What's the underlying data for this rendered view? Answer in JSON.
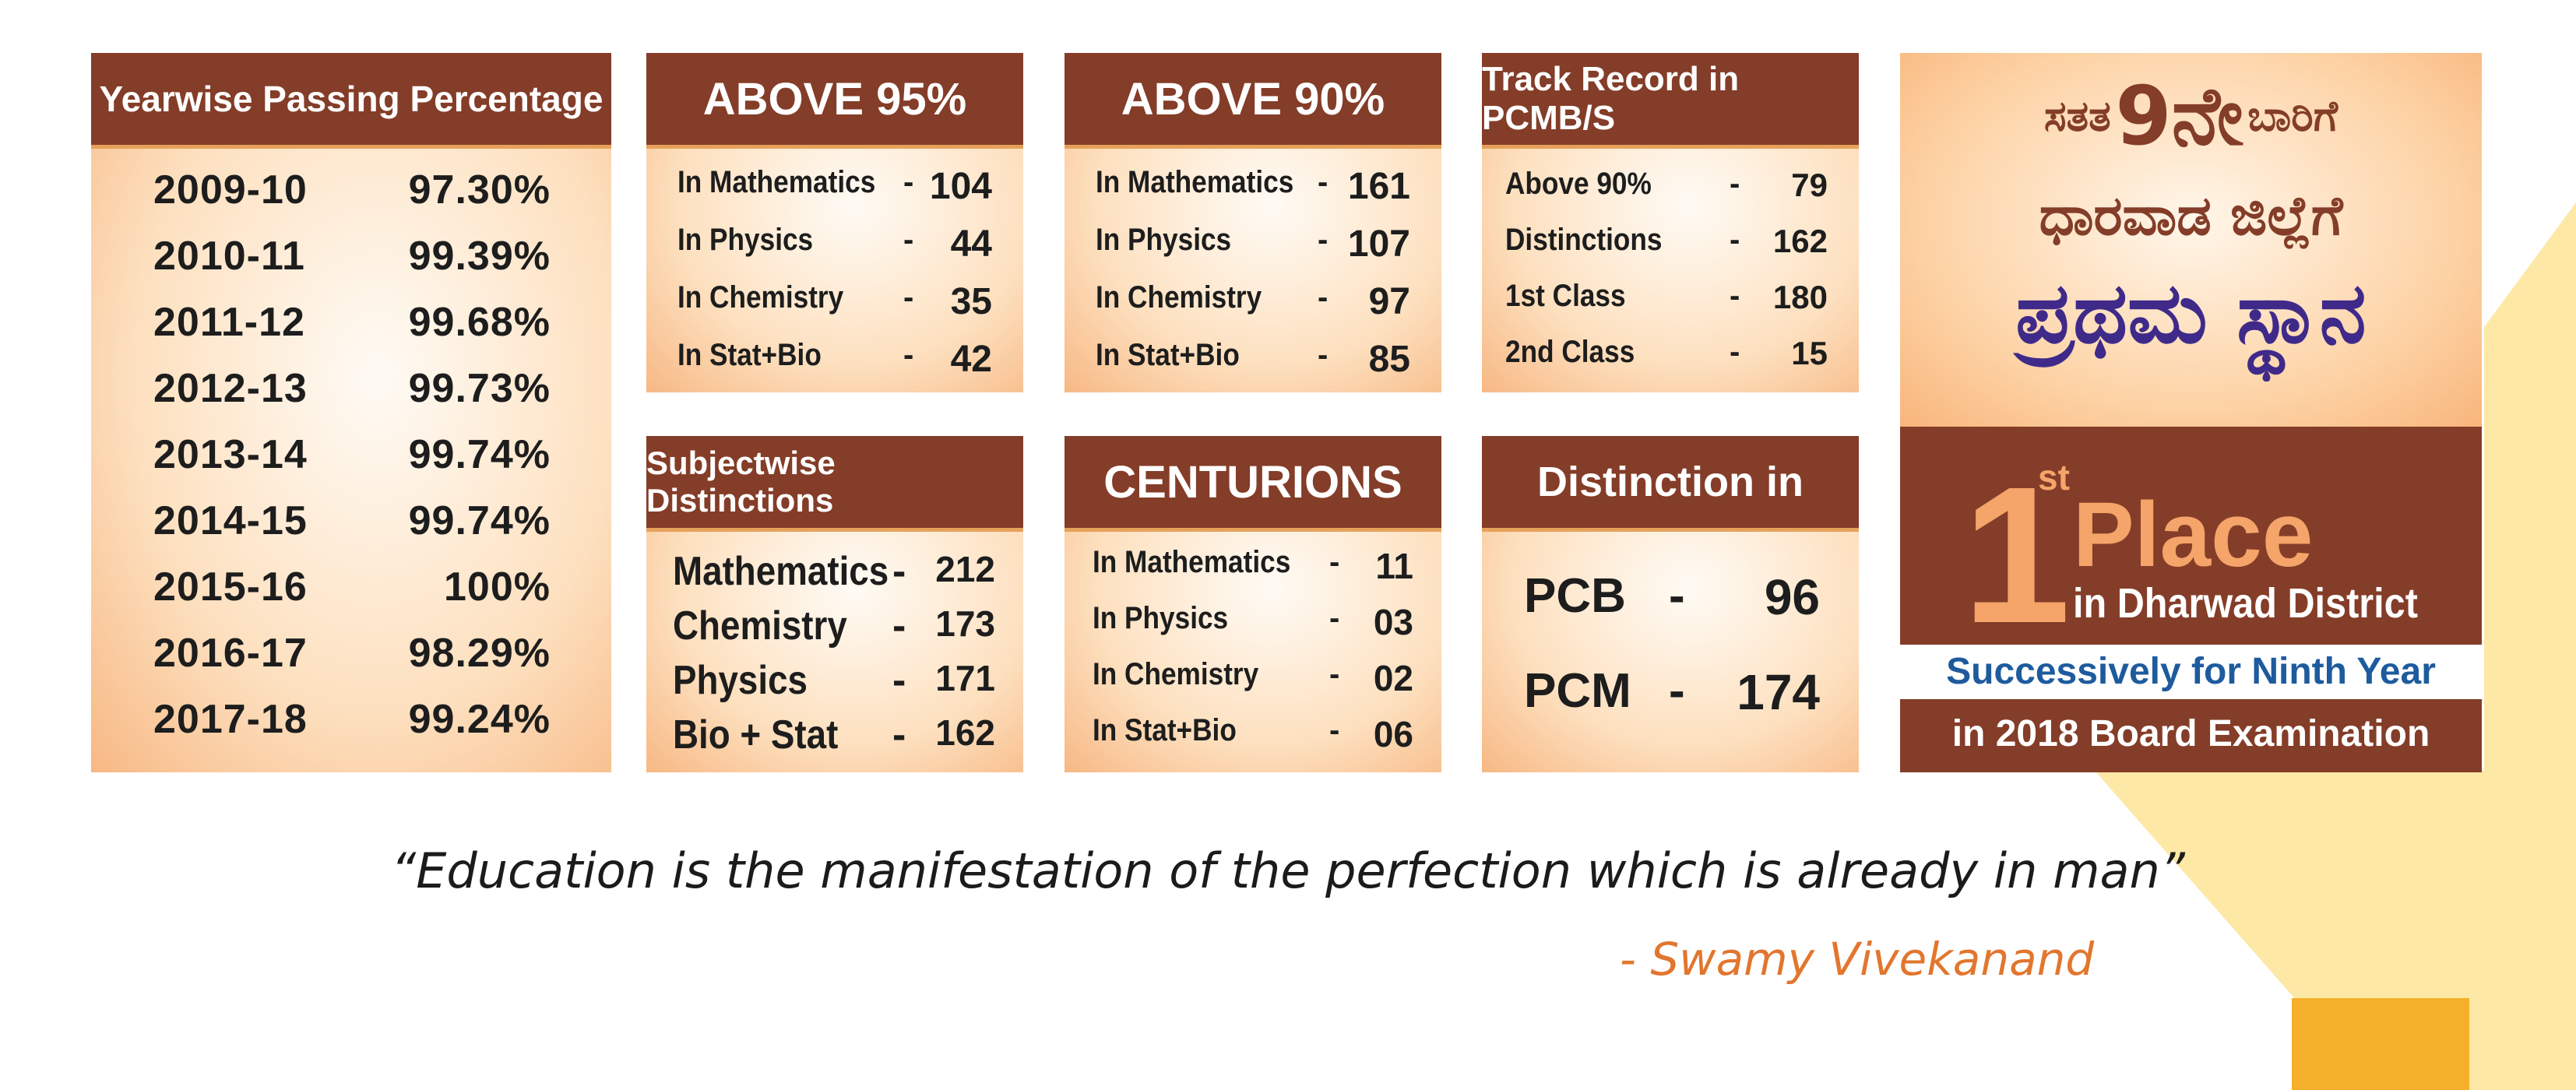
{
  "colors": {
    "header": "#843d28",
    "accent_orange": "#f5a46a",
    "blue": "#1e5b9e",
    "author": "#e2762e",
    "deco_yellow": "#fde8a6",
    "deco_gold": "#f4b02a"
  },
  "yearwise": {
    "title": "Yearwise Passing Percentage",
    "rows": [
      {
        "year": "2009-10",
        "pct": "97.30%"
      },
      {
        "year": "2010-11",
        "pct": "99.39%"
      },
      {
        "year": "2011-12",
        "pct": "99.68%"
      },
      {
        "year": "2012-13",
        "pct": "99.73%"
      },
      {
        "year": "2013-14",
        "pct": "99.74%"
      },
      {
        "year": "2014-15",
        "pct": "99.74%"
      },
      {
        "year": "2015-16",
        "pct": "100%"
      },
      {
        "year": "2016-17",
        "pct": "98.29%"
      },
      {
        "year": "2017-18",
        "pct": "99.24%"
      }
    ]
  },
  "above95": {
    "title": "ABOVE 95%",
    "rows": [
      {
        "label": "In Mathematics",
        "value": "104"
      },
      {
        "label": "In Physics",
        "value": "44"
      },
      {
        "label": "In Chemistry",
        "value": "35"
      },
      {
        "label": "In Stat+Bio",
        "value": "42"
      }
    ]
  },
  "above90": {
    "title": "ABOVE 90%",
    "rows": [
      {
        "label": "In Mathematics",
        "value": "161"
      },
      {
        "label": "In Physics",
        "value": "107"
      },
      {
        "label": "In Chemistry",
        "value": "97"
      },
      {
        "label": "In Stat+Bio",
        "value": "85"
      }
    ]
  },
  "track": {
    "title": "Track Record in PCMB/S",
    "rows": [
      {
        "label": "Above 90%",
        "value": "79"
      },
      {
        "label": "Distinctions",
        "value": "162"
      },
      {
        "label": "1st Class",
        "value": "180"
      },
      {
        "label": "2nd Class",
        "value": "15"
      }
    ]
  },
  "subjectwise": {
    "title": "Subjectwise Distinctions",
    "rows": [
      {
        "label": "Mathematics",
        "value": "212"
      },
      {
        "label": "Chemistry",
        "value": "173"
      },
      {
        "label": "Physics",
        "value": "171"
      },
      {
        "label": "Bio + Stat",
        "value": "162"
      }
    ]
  },
  "centurions": {
    "title": "CENTURIONS",
    "rows": [
      {
        "label": "In Mathematics",
        "value": "11"
      },
      {
        "label": "In Physics",
        "value": "03"
      },
      {
        "label": "In Chemistry",
        "value": "02"
      },
      {
        "label": "In Stat+Bio",
        "value": "06"
      }
    ]
  },
  "distinction": {
    "title": "Distinction in",
    "rows": [
      {
        "label": "PCB",
        "value": "96"
      },
      {
        "label": "PCM",
        "value": "174"
      }
    ]
  },
  "dash": "-",
  "kannada": {
    "line1_a": "ಸತತ",
    "line1_num": "9ನೇ",
    "line1_b": "ಬಾರಿಗೆ",
    "line2": "ಧಾರವಾಡ ಜಿಲ್ಲೆಗೆ",
    "line3": "ಪ್ರಥಮ ಸ್ಥಾನ"
  },
  "place": {
    "big_number": "1",
    "suffix": "st",
    "word": "Place",
    "district": "in Dharwad District",
    "successively": "Successively for Ninth Year",
    "board": "in 2018 Board Examination"
  },
  "quote": {
    "text": "“Education is the manifestation of the perfection which is already in man”",
    "author": "- Swamy Vivekanand"
  }
}
